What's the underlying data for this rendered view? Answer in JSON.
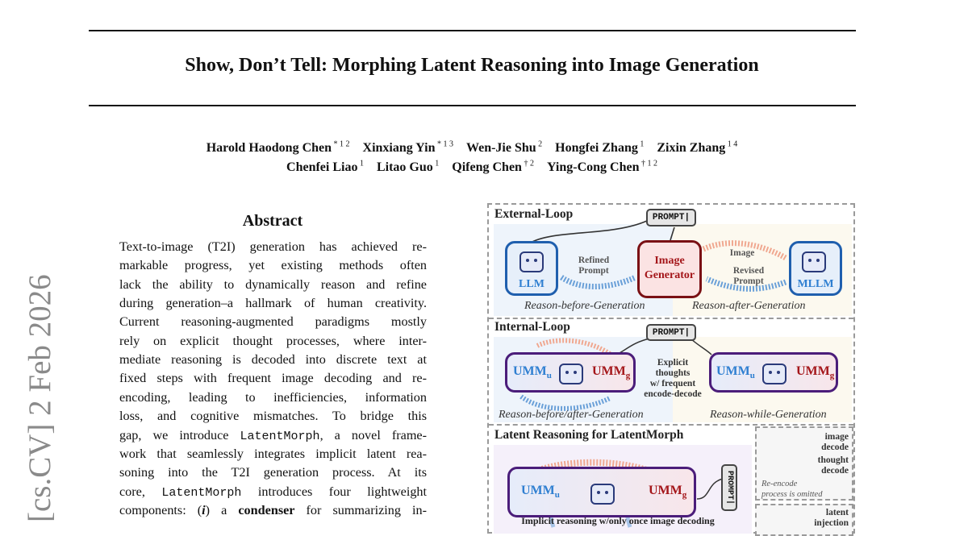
{
  "arxiv_stamp": "[cs.CV]  2 Feb 2026",
  "title": "Show, Don’t Tell: Morphing Latent Reasoning into Image Generation",
  "authors": {
    "line1": [
      {
        "name": "Harold Haodong Chen",
        "aff": "* 1 2"
      },
      {
        "name": "Xinxiang Yin",
        "aff": "* 1 3"
      },
      {
        "name": "Wen-Jie Shu",
        "aff": "2"
      },
      {
        "name": "Hongfei Zhang",
        "aff": "1"
      },
      {
        "name": "Zixin Zhang",
        "aff": "1 4"
      }
    ],
    "line2": [
      {
        "name": "Chenfei Liao",
        "aff": "1"
      },
      {
        "name": "Litao Guo",
        "aff": "1"
      },
      {
        "name": "Qifeng Chen",
        "aff": "† 2"
      },
      {
        "name": "Ying-Cong Chen",
        "aff": "† 1 2"
      }
    ]
  },
  "abstract": {
    "heading": "Abstract",
    "lines": [
      [
        {
          "t": "Text-to-image (T2I) generation has achieved re-"
        }
      ],
      [
        {
          "t": "markable progress, yet existing methods often"
        }
      ],
      [
        {
          "t": "lack the ability to dynamically reason and refine"
        }
      ],
      [
        {
          "t": "during generation–a hallmark of human creativity."
        }
      ],
      [
        {
          "t": "Current reasoning-augmented paradigms mostly"
        }
      ],
      [
        {
          "t": "rely on explicit thought processes, where inter-"
        }
      ],
      [
        {
          "t": "mediate reasoning is decoded into discrete text at"
        }
      ],
      [
        {
          "t": "fixed steps with frequent image decoding and re-"
        }
      ],
      [
        {
          "t": "encoding, leading to inefficiencies, information"
        }
      ],
      [
        {
          "t": "loss, and cognitive mismatches.  To bridge this"
        }
      ],
      [
        {
          "t": "gap, we introduce "
        },
        {
          "t": "LatentMorph",
          "s": "mono"
        },
        {
          "t": ", a novel frame-"
        }
      ],
      [
        {
          "t": "work that seamlessly integrates implicit latent rea-"
        }
      ],
      [
        {
          "t": "soning into the T2I generation process.  At its"
        }
      ],
      [
        {
          "t": "core, "
        },
        {
          "t": "LatentMorph",
          "s": "mono"
        },
        {
          "t": " introduces four lightweight"
        }
      ],
      [
        {
          "t": "components: ("
        },
        {
          "t": "i",
          "s": "bi"
        },
        {
          "t": ") a "
        },
        {
          "t": "condenser",
          "s": "b"
        },
        {
          "t": " for summarizing in-"
        }
      ]
    ]
  },
  "figure": {
    "external": {
      "title": "External-Loop",
      "prompt": "PROMPT|",
      "llm": "LLM",
      "generator": [
        "Image",
        "Generator"
      ],
      "mllm": "MLLM",
      "refined_prompt": [
        "Refined",
        "Prompt"
      ],
      "image": "Image",
      "revised_prompt": [
        "Revised",
        "Prompt"
      ],
      "caption_left": "Reason-before-Generation",
      "caption_right": "Reason-after-Generation"
    },
    "internal": {
      "title": "Internal-Loop",
      "prompt": "PROMPT|",
      "umm_u": "UMM",
      "sub_u": "u",
      "umm_g": "UMM",
      "sub_g": "g",
      "middle": [
        "Explicit",
        "thoughts",
        "w/ frequent",
        "encode-decode"
      ],
      "caption_left": "Reason-before/after-Generation",
      "caption_right": "Reason-while-Generation"
    },
    "latent": {
      "title": "Latent Reasoning for LatentMorph",
      "prompt": "PROMPT|",
      "umm_u": "UMM",
      "sub_u": "u",
      "umm_g": "UMM",
      "sub_g": "g",
      "caption": "Implicit reasoning w/only once image decoding"
    },
    "legend": {
      "image_decode": [
        "image",
        "decode"
      ],
      "thought_decode": [
        "thought",
        "decode"
      ],
      "note": [
        "Re-encode",
        "process is omitted"
      ],
      "latent_injection": [
        "latent",
        "injection"
      ]
    },
    "colors": {
      "blue": "#2f7fd1",
      "red": "#a4161a",
      "purple": "#4b1d7a",
      "generator_fill": "#fbe3e3"
    }
  }
}
